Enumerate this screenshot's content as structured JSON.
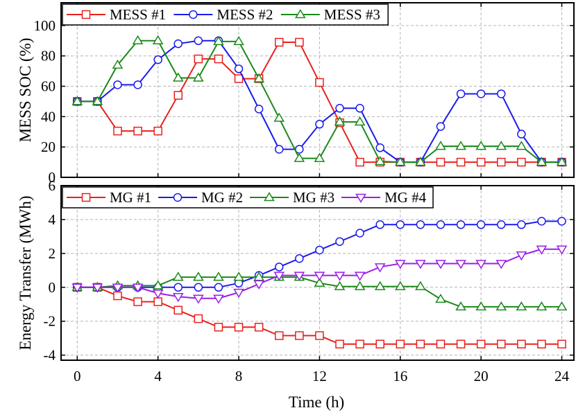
{
  "chart_data": [
    {
      "type": "line",
      "id": "top",
      "ylabel": "MESS SOC (%)",
      "xlabel": "",
      "xlim": [
        -0.8,
        24.6
      ],
      "ylim": [
        0,
        115
      ],
      "yticks": [
        0,
        20,
        40,
        60,
        80,
        100
      ],
      "xticks": [
        0,
        4,
        8,
        12,
        16,
        20,
        24
      ],
      "grid": true,
      "legend_position": "top",
      "x": [
        0,
        1,
        2,
        3,
        4,
        5,
        6,
        7,
        8,
        9,
        10,
        11,
        12,
        13,
        14,
        15,
        16,
        17,
        18,
        19,
        20,
        21,
        22,
        23,
        24
      ],
      "series": [
        {
          "name": "MESS #1",
          "color": "#e8201c",
          "marker": "square",
          "values": [
            50,
            50,
            30.5,
            30.5,
            30.5,
            54,
            78,
            78,
            65,
            65,
            89,
            89,
            62.5,
            36,
            10,
            10,
            10,
            10,
            10,
            10,
            10,
            10,
            10,
            10,
            10
          ]
        },
        {
          "name": "MESS #2",
          "color": "#1a1aee",
          "marker": "circle",
          "values": [
            50,
            50,
            61,
            61,
            77.5,
            88,
            90,
            90,
            71.5,
            45,
            18.5,
            18.5,
            35,
            45.5,
            45.5,
            19.5,
            10,
            10,
            33.5,
            55,
            55,
            55,
            28.5,
            10,
            10
          ]
        },
        {
          "name": "MESS #3",
          "color": "#198a19",
          "marker": "triangle-up",
          "values": [
            50,
            50,
            74,
            90,
            90,
            65.5,
            65.5,
            89.5,
            89.5,
            65,
            39,
            12.5,
            12.5,
            36.5,
            36.5,
            10.5,
            10,
            10,
            20.5,
            20.5,
            20.5,
            20.5,
            20.5,
            10,
            10
          ]
        }
      ]
    },
    {
      "type": "line",
      "id": "bottom",
      "ylabel": "Energy Transfer (MWh)",
      "xlabel": "Time (h)",
      "xlim": [
        -0.8,
        24.6
      ],
      "ylim": [
        -4.3,
        6
      ],
      "yticks": [
        -4,
        -2,
        0,
        2,
        4,
        6
      ],
      "xticks": [
        0,
        4,
        8,
        12,
        16,
        20,
        24
      ],
      "grid": true,
      "legend_position": "top",
      "x": [
        0,
        1,
        2,
        3,
        4,
        5,
        6,
        7,
        8,
        9,
        10,
        11,
        12,
        13,
        14,
        15,
        16,
        17,
        18,
        19,
        20,
        21,
        22,
        23,
        24
      ],
      "series": [
        {
          "name": "MG #1",
          "color": "#e8201c",
          "marker": "square",
          "values": [
            0,
            0,
            -0.5,
            -0.85,
            -0.85,
            -1.35,
            -1.85,
            -2.35,
            -2.35,
            -2.35,
            -2.85,
            -2.85,
            -2.85,
            -3.35,
            -3.35,
            -3.35,
            -3.35,
            -3.35,
            -3.35,
            -3.35,
            -3.35,
            -3.35,
            -3.35,
            -3.35,
            -3.35
          ]
        },
        {
          "name": "MG #2",
          "color": "#1a1aee",
          "marker": "circle",
          "values": [
            0,
            0,
            0,
            0,
            0,
            0,
            0,
            0,
            0.25,
            0.7,
            1.2,
            1.7,
            2.2,
            2.7,
            3.2,
            3.7,
            3.7,
            3.7,
            3.7,
            3.7,
            3.7,
            3.7,
            3.7,
            3.9,
            3.9
          ]
        },
        {
          "name": "MG #3",
          "color": "#198a19",
          "marker": "triangle-up",
          "values": [
            0,
            0,
            0.1,
            0.1,
            0.1,
            0.6,
            0.6,
            0.6,
            0.6,
            0.6,
            0.6,
            0.6,
            0.25,
            0.05,
            0.05,
            0.05,
            0.05,
            0.05,
            -0.7,
            -1.15,
            -1.15,
            -1.15,
            -1.15,
            -1.15,
            -1.15
          ]
        },
        {
          "name": "MG #4",
          "color": "#9a1ee6",
          "marker": "triangle-down",
          "values": [
            0,
            0,
            0,
            0,
            -0.35,
            -0.55,
            -0.65,
            -0.65,
            -0.3,
            0.2,
            0.7,
            0.7,
            0.7,
            0.7,
            0.7,
            1.2,
            1.4,
            1.4,
            1.4,
            1.4,
            1.4,
            1.4,
            1.9,
            2.25,
            2.25
          ]
        }
      ]
    }
  ]
}
